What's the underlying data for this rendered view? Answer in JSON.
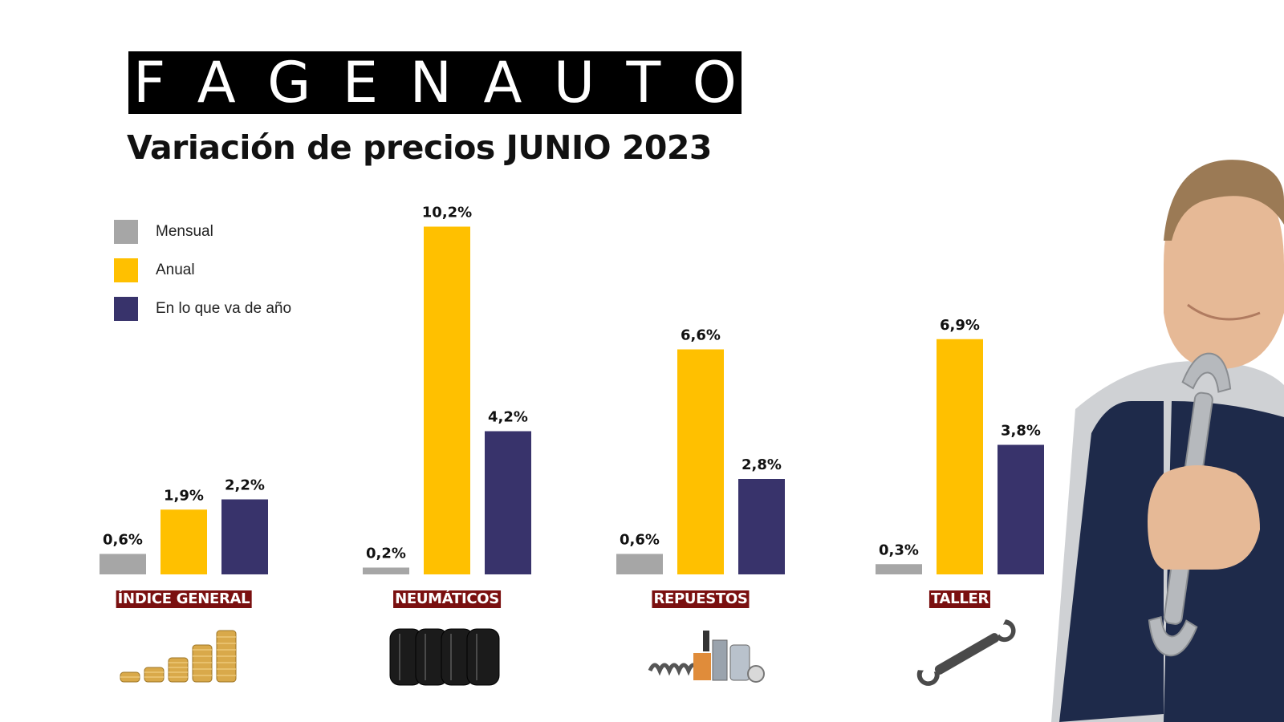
{
  "brand": "FAGENAUTO",
  "title": "Variación de precios JUNIO 2023",
  "colors": {
    "mensual": "#A6A6A6",
    "anual": "#FFC000",
    "en_lo_que_va_de_ano": "#38336B",
    "category_label_bg": "#7A1010"
  },
  "chart_data": {
    "type": "bar",
    "categories": [
      "ÍNDICE GENERAL",
      "NEUMÁTICOS",
      "REPUESTOS",
      "TALLER"
    ],
    "series": [
      {
        "name": "Mensual",
        "values": [
          0.6,
          0.2,
          0.6,
          0.3
        ],
        "labels": [
          "0,6%",
          "0,2%",
          "0,6%",
          "0,3%"
        ]
      },
      {
        "name": "Anual",
        "values": [
          1.9,
          10.2,
          6.6,
          6.9
        ],
        "labels": [
          "1,9%",
          "10,2%",
          "6,6%",
          "6,9%"
        ]
      },
      {
        "name": "En lo que va de año",
        "values": [
          2.2,
          4.2,
          2.8,
          3.8
        ],
        "labels": [
          "2,2%",
          "4,2%",
          "2,8%",
          "3,8%"
        ]
      }
    ],
    "legend_position": "top-left",
    "grid": false,
    "ylim": [
      0,
      10.2
    ]
  },
  "icons": [
    "coins-icon",
    "tires-icon",
    "spare-parts-icon",
    "wrench-icon"
  ],
  "photo": "mechanic-with-wrench-image"
}
